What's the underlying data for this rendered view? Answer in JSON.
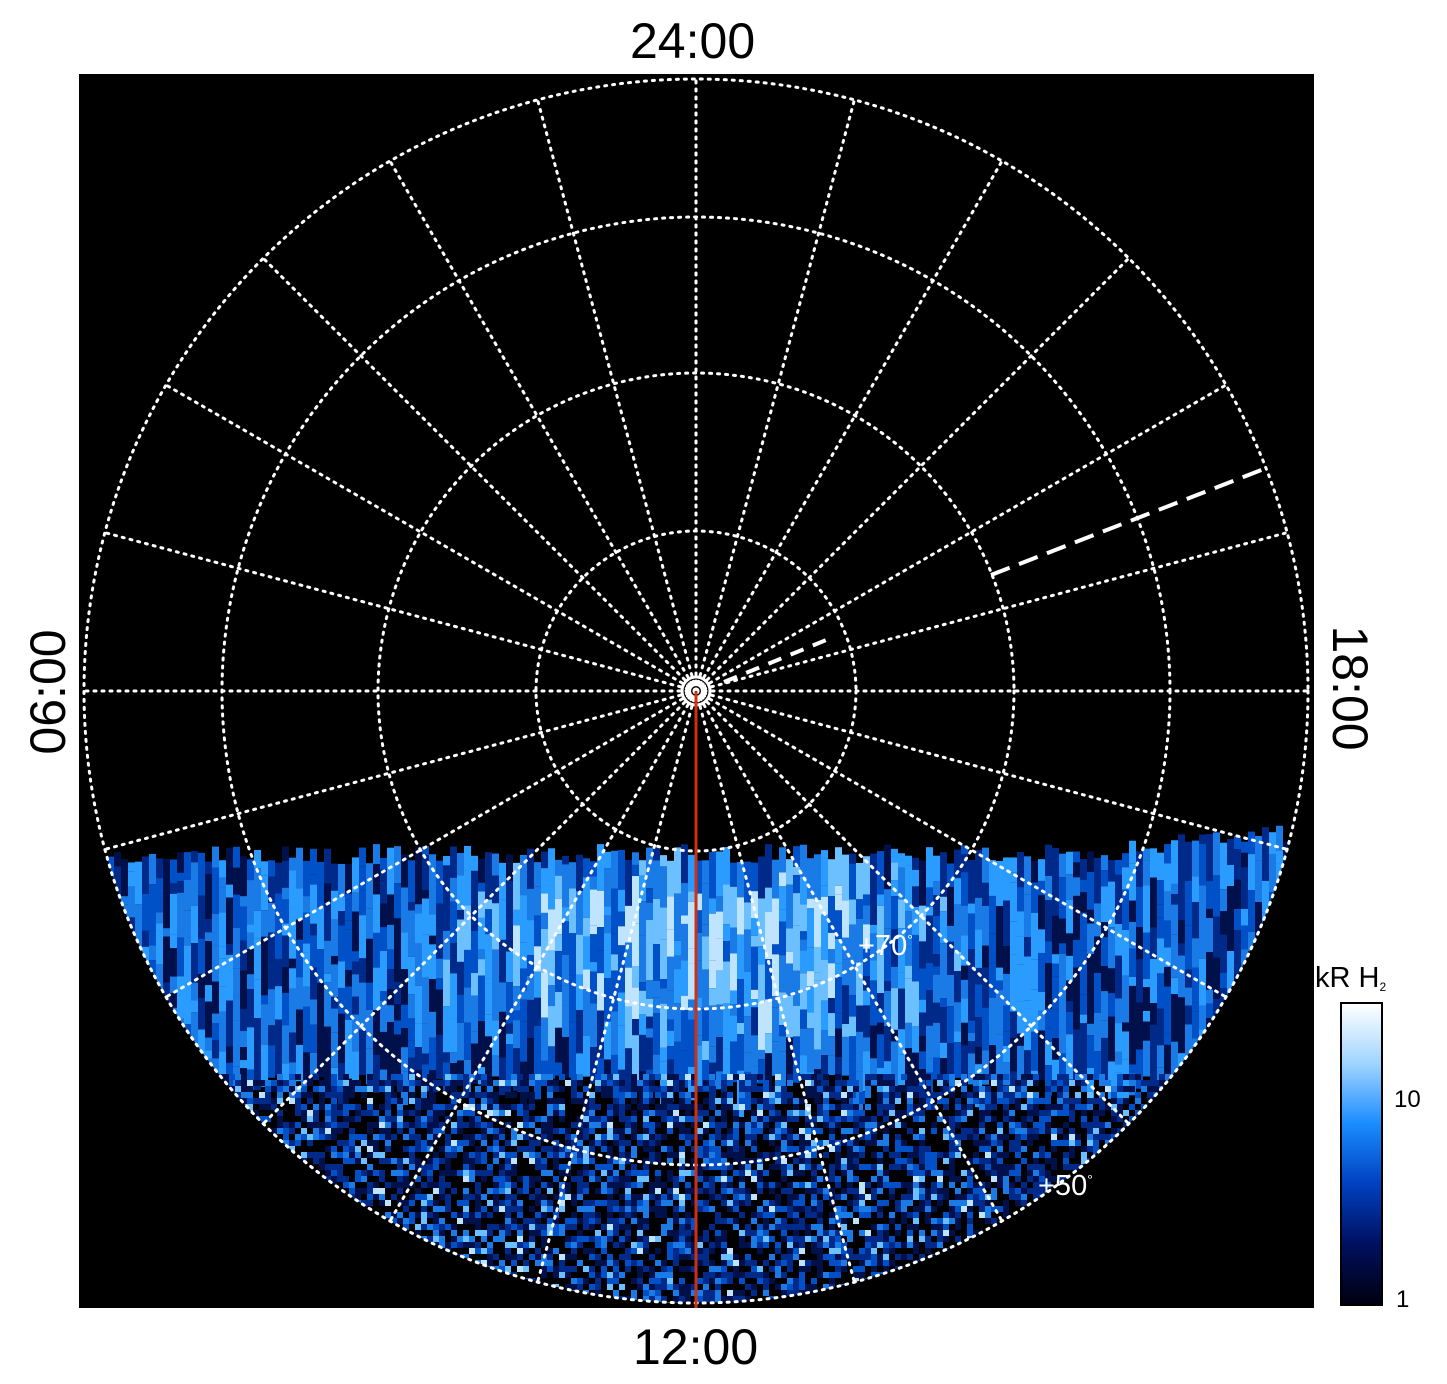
{
  "local_time_labels": {
    "top": "24:00",
    "bottom": "12:00",
    "left": "06:00",
    "right": "18:00"
  },
  "latitude_labels": [
    "+70",
    "+50"
  ],
  "degree_symbol": "°",
  "colorbar": {
    "title": "kR H",
    "title_subscript": "2",
    "ticks": [
      "10",
      "1"
    ],
    "colors": [
      "#000010",
      "#001060",
      "#0040c0",
      "#1a8cff",
      "#9fd4ff",
      "#ffffff"
    ]
  },
  "colors": {
    "background": "#000000",
    "grid": "#ffffff",
    "meridian_line": "#d03010"
  }
}
